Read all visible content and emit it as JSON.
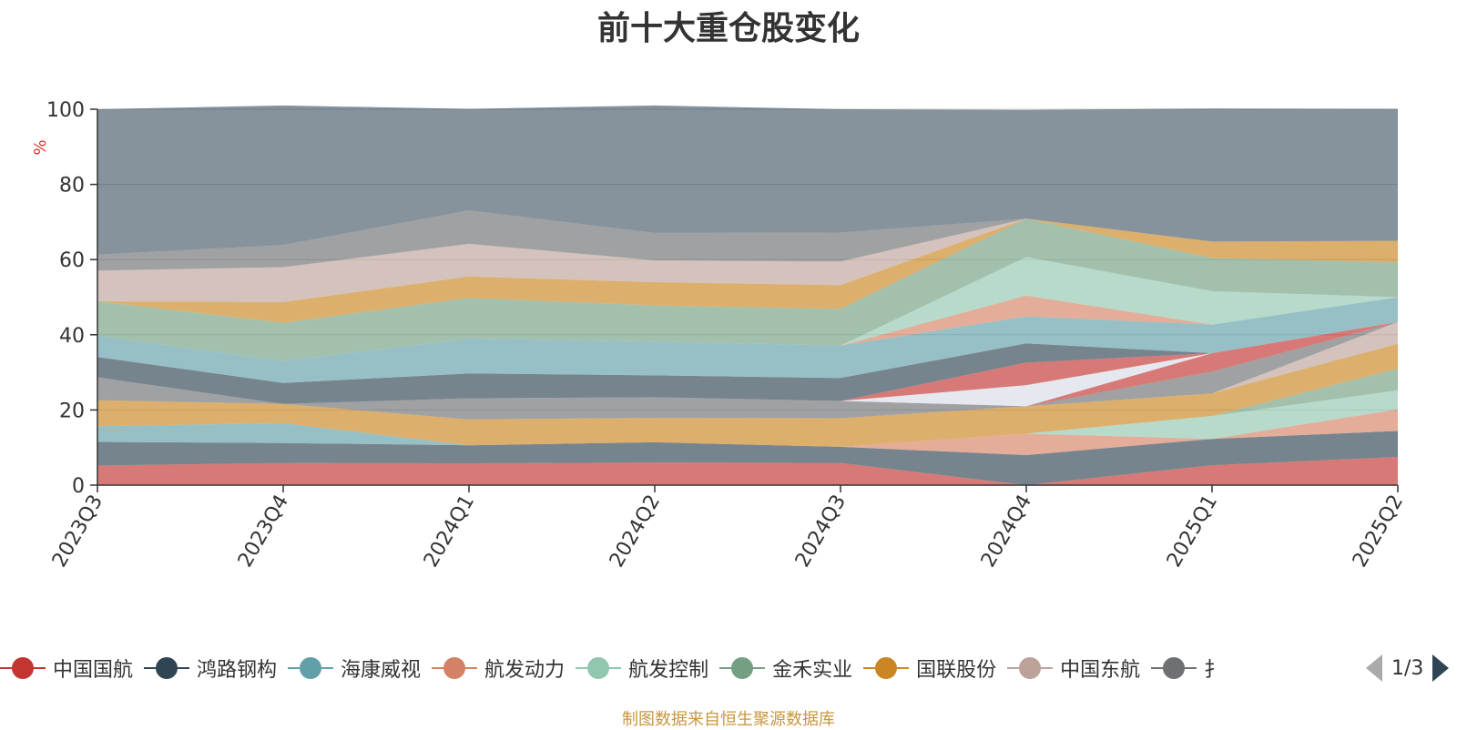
{
  "chart_data": {
    "type": "area",
    "title": "前十大重仓股变化",
    "ylabel": "%",
    "ylim": [
      0,
      100
    ],
    "yticks": [
      "0",
      "20",
      "40",
      "60",
      "80",
      "100"
    ],
    "stacked": true,
    "categories": [
      "2023Q3",
      "2023Q4",
      "2024Q1",
      "2024Q2",
      "2024Q3",
      "2024Q4",
      "2025Q1",
      "2025Q2"
    ],
    "series": [
      {
        "name": "中国国航",
        "color": "#c23531",
        "values": [
          5.2,
          5.9,
          5.8,
          6.0,
          5.9,
          0,
          5.3,
          7.5
        ]
      },
      {
        "name": "鸿路钢构",
        "color": "#2f4554",
        "values": [
          6.3,
          5.3,
          4.8,
          5.4,
          4.3,
          8.0,
          7.0,
          6.9
        ]
      },
      {
        "name": "海康威视",
        "color": "#61a0a8",
        "values": [
          4.2,
          5.3,
          0,
          0,
          0,
          0,
          0,
          0
        ]
      },
      {
        "name": "航发动力",
        "color": "#d48265",
        "values": [
          0,
          0,
          0,
          0,
          0,
          5.7,
          0,
          5.8
        ]
      },
      {
        "name": "航发控制",
        "color": "#91c7ae",
        "values": [
          0,
          0,
          0,
          0,
          0,
          0,
          6.1,
          5.0
        ]
      },
      {
        "name": "金禾实业",
        "color": "#749f83",
        "values": [
          0,
          0,
          0,
          0,
          0,
          0,
          0,
          5.8
        ]
      },
      {
        "name": "国联股份",
        "color": "#ca8622",
        "values": [
          6.9,
          5.1,
          6.9,
          6.5,
          7.6,
          7.3,
          6.0,
          6.6
        ]
      },
      {
        "name": "中国东航",
        "color": "#bda29a",
        "values": [
          0,
          0,
          0,
          0,
          0,
          0,
          0,
          5.8
        ]
      },
      {
        "name": "",
        "color": "#6e7074",
        "values": [
          6.1,
          0,
          5.6,
          5.5,
          4.6,
          0,
          5.8,
          0
        ]
      },
      {
        "name": "",
        "color": "#c23531",
        "values": [
          0,
          0,
          0,
          0,
          0,
          0,
          4.9,
          0
        ]
      },
      {
        "name": "",
        "color": "#2f4554",
        "values": [
          0,
          0,
          0,
          0,
          0,
          0,
          0,
          0
        ]
      },
      {
        "name": "",
        "color": "#d7dce6",
        "values": [
          0,
          0,
          0,
          0,
          0,
          5.6,
          0,
          0
        ]
      },
      {
        "name": "",
        "color": "#c23531",
        "values": [
          0,
          0,
          0,
          0,
          0,
          6.0,
          0,
          0
        ]
      },
      {
        "name": "",
        "color": "#2f4554",
        "values": [
          5.4,
          5.6,
          6.6,
          5.8,
          6.1,
          5.1,
          0,
          0
        ]
      },
      {
        "name": "",
        "color": "#61a0a8",
        "values": [
          5.7,
          5.8,
          9.3,
          9.0,
          8.6,
          7.2,
          7.6,
          6.6
        ]
      },
      {
        "name": "",
        "color": "#d48265",
        "values": [
          0,
          0,
          0,
          0,
          0,
          5.5,
          0,
          0
        ]
      },
      {
        "name": "",
        "color": "#91c7ae",
        "values": [
          0,
          0,
          0,
          0,
          0,
          10.3,
          8.9,
          0
        ]
      },
      {
        "name": "",
        "color": "#749f83",
        "values": [
          9.1,
          10.2,
          10.8,
          9.6,
          9.8,
          10.2,
          8.8,
          9.3
        ]
      },
      {
        "name": "",
        "color": "#ca8622",
        "values": [
          0,
          5.5,
          5.7,
          6.2,
          6.3,
          0,
          4.4,
          5.7
        ]
      },
      {
        "name": "",
        "color": "#bda29a",
        "values": [
          8.2,
          9.3,
          8.7,
          5.8,
          6.3,
          0,
          0,
          0
        ]
      },
      {
        "name": "",
        "color": "#6e7074",
        "values": [
          4.2,
          5.9,
          8.9,
          7.3,
          7.7,
          0,
          0,
          0
        ]
      },
      {
        "name": "",
        "color": "#2f4554",
        "values": [
          38.7,
          37.1,
          27.0,
          33.9,
          32.8,
          28.9,
          35.4,
          35.1
        ]
      }
    ],
    "legend_position": "bottom",
    "legend_page": "1/3",
    "grid": true
  },
  "legend_items": [
    {
      "label": "中国国航",
      "color": "#c23531"
    },
    {
      "label": "鸿路钢构",
      "color": "#2f4554"
    },
    {
      "label": "海康威视",
      "color": "#61a0a8"
    },
    {
      "label": "航发动力",
      "color": "#d48265"
    },
    {
      "label": "航发控制",
      "color": "#91c7ae"
    },
    {
      "label": "金禾实业",
      "color": "#749f83"
    },
    {
      "label": "国联股份",
      "color": "#ca8622"
    },
    {
      "label": "中国东航",
      "color": "#bda29a"
    },
    {
      "label": "扌",
      "color": "#6e7074"
    }
  ],
  "pager": {
    "text": "1/3",
    "prev_icon": "triangle-left-icon",
    "next_icon": "triangle-right-icon"
  },
  "footnote": "制图数据来自恒生聚源数据库"
}
